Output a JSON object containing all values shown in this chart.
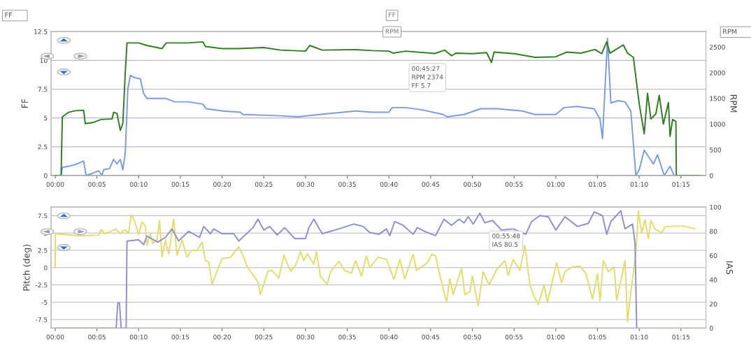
{
  "chart_data": [
    {
      "type": "line",
      "ylabel": "FF",
      "y2label": "RPM",
      "xlim": [
        -0.5,
        78
      ],
      "xticks": [
        {
          "value": 0,
          "label": "00:00"
        },
        {
          "value": 5,
          "label": "00:05"
        },
        {
          "value": 10,
          "label": "00:10"
        },
        {
          "value": 15,
          "label": "00:15"
        },
        {
          "value": 20,
          "label": "00:20"
        },
        {
          "value": 25,
          "label": "00:25"
        },
        {
          "value": 30,
          "label": "00:30"
        },
        {
          "value": 35,
          "label": "00:35"
        },
        {
          "value": 40,
          "label": "00:40"
        },
        {
          "value": 45,
          "label": "00:45"
        },
        {
          "value": 50,
          "label": "00:50"
        },
        {
          "value": 55,
          "label": "00:55"
        },
        {
          "value": 60,
          "label": "01:00"
        },
        {
          "value": 65,
          "label": "01:05"
        },
        {
          "value": 70,
          "label": "01:10"
        },
        {
          "value": 75,
          "label": "01:15"
        }
      ],
      "ylim": [
        0,
        12.5
      ],
      "yticks": [
        0,
        2.5,
        5,
        7.5,
        10,
        12.5
      ],
      "y2lim": [
        0,
        2800
      ],
      "y2ticks": [
        0,
        500,
        1000,
        1500,
        2000,
        2500
      ],
      "grid": "y",
      "annotations": [
        "FF",
        "FF",
        "RPM",
        "RPM",
        "00:45:27\nRPM 2374\nFF 5.7"
      ],
      "series": [
        {
          "color": "#7b9be0",
          "x": [
            0,
            0.7,
            0.85,
            1.6,
            2.4,
            3.4,
            3.7,
            4.5,
            5.2,
            5.6,
            5.8,
            6.5,
            7.0,
            7.4,
            7.8,
            8.1,
            8.4,
            8.7,
            9.0,
            9.5,
            10.2,
            10.6,
            11.0,
            11.9,
            13.2,
            14.3,
            15.9,
            17.7,
            18.1,
            20.1,
            22.2,
            22.5,
            26.5,
            29.1,
            31.7,
            36,
            38,
            40,
            40.4,
            42,
            44,
            46.5,
            47,
            49,
            51,
            53,
            56,
            57.5,
            60,
            61,
            62.5,
            64.6,
            65.3,
            65.6,
            66.2,
            66.6,
            67.5,
            68.3,
            69,
            69.6,
            70,
            70.6,
            71.7,
            72.2,
            73,
            73.7,
            74,
            74.2,
            77.3
          ],
          "values": [
            0,
            0,
            0.7,
            0.8,
            0.95,
            1.25,
            0,
            0.2,
            0.4,
            0,
            0.5,
            0.6,
            1.4,
            1.0,
            1.4,
            0.5,
            2.0,
            7.5,
            8.7,
            8.5,
            8.4,
            7.1,
            6.7,
            6.7,
            6.7,
            6.4,
            6.4,
            6.2,
            5.8,
            5.6,
            5.5,
            5.3,
            5.2,
            5.1,
            5.3,
            5.6,
            5.5,
            5.5,
            5.9,
            5.9,
            5.7,
            5.3,
            5.1,
            5.3,
            5.8,
            5.8,
            5.6,
            5.3,
            5.3,
            5.9,
            6.0,
            5.8,
            4.9,
            3.2,
            11.9,
            6.3,
            6.5,
            6.4,
            5.6,
            0,
            0.5,
            2.2,
            1.0,
            1.8,
            0,
            0.8,
            0.3,
            0,
            0
          ]
        },
        {
          "color": "#2e7d1e",
          "axis": "y2",
          "x": [
            0,
            0.7,
            0.85,
            1.6,
            2.4,
            3.4,
            3.6,
            4.5,
            5.5,
            6.8,
            7.0,
            7.4,
            7.8,
            8.1,
            8.4,
            8.6,
            10,
            11,
            12.8,
            13.3,
            15.9,
            17.7,
            18,
            20,
            22,
            25,
            27,
            30,
            30.5,
            32,
            36,
            38,
            40,
            40.5,
            42,
            45.5,
            46.7,
            47.5,
            48,
            50,
            51.7,
            52.3,
            52.6,
            55,
            57.5,
            60,
            61.3,
            63,
            64.7,
            65.5,
            66.1,
            66.5,
            67.5,
            68.1,
            68.6,
            69.3,
            70,
            70.6,
            71,
            71.4,
            72,
            72.4,
            72.9,
            73.5,
            73.7,
            74,
            74.4,
            74.45,
            77.3
          ],
          "values": [
            0,
            0,
            1140,
            1230,
            1260,
            1270,
            1010,
            1030,
            1090,
            1100,
            1230,
            1210,
            880,
            1010,
            2020,
            2580,
            2580,
            2530,
            2470,
            2580,
            2580,
            2600,
            2510,
            2470,
            2470,
            2490,
            2440,
            2420,
            2530,
            2440,
            2450,
            2430,
            2420,
            2380,
            2420,
            2374,
            2440,
            2330,
            2380,
            2370,
            2390,
            2200,
            2400,
            2370,
            2300,
            2310,
            2400,
            2380,
            2450,
            2370,
            2600,
            2380,
            2480,
            2540,
            2380,
            2300,
            1400,
            810,
            1600,
            1100,
            1200,
            1560,
            1000,
            1420,
            760,
            1090,
            1050,
            0,
            0
          ]
        }
      ]
    },
    {
      "type": "line",
      "ylabel": "Pitch (deg)",
      "y2label": "IAS",
      "xlim": [
        -0.5,
        78
      ],
      "xticks": [
        {
          "value": 0,
          "label": "00:00"
        },
        {
          "value": 5,
          "label": "00:05"
        },
        {
          "value": 10,
          "label": "00:10"
        },
        {
          "value": 15,
          "label": "00:15"
        },
        {
          "value": 20,
          "label": "00:20"
        },
        {
          "value": 25,
          "label": "00:25"
        },
        {
          "value": 30,
          "label": "00:30"
        },
        {
          "value": 35,
          "label": "00:35"
        },
        {
          "value": 40,
          "label": "00:40"
        },
        {
          "value": 45,
          "label": "00:45"
        },
        {
          "value": 50,
          "label": "00:50"
        },
        {
          "value": 55,
          "label": "00:55"
        },
        {
          "value": 60,
          "label": "01:00"
        },
        {
          "value": 65,
          "label": "01:05"
        },
        {
          "value": 70,
          "label": "01:10"
        },
        {
          "value": 75,
          "label": "01:15"
        }
      ],
      "ylim": [
        -8.75,
        8.75
      ],
      "yticks": [
        -7.5,
        -5,
        -2.5,
        0,
        2.5,
        5,
        7.5
      ],
      "y2lim": [
        0,
        100
      ],
      "y2ticks": [
        0,
        20,
        40,
        60,
        80,
        100
      ],
      "grid": "y",
      "annotations": [
        "00:55:48\nIAS 80.5"
      ],
      "series": [
        {
          "color": "#e3dc6a",
          "x": [
            0,
            0.02,
            1,
            3,
            5.2,
            5.5,
            6,
            7.3,
            7.8,
            8.3,
            8.8,
            9.1,
            9.5,
            10,
            10.4,
            10.8,
            11.0,
            11.4,
            11.7,
            12.2,
            12.5,
            12.8,
            13.2,
            13.6,
            14.2,
            14.6,
            15.2,
            15.8,
            16.3,
            17.0,
            17.6,
            18.0,
            18.4,
            18.8,
            19.4,
            20,
            21,
            22,
            22.6,
            23,
            24.3,
            24.6,
            25.5,
            26,
            26.8,
            27.4,
            28.2,
            28.8,
            29.4,
            29.8,
            30.2,
            31,
            31.3,
            31.8,
            32.6,
            33,
            34,
            34.7,
            35.5,
            36,
            36.7,
            37.3,
            37.7,
            38.7,
            39.7,
            40.6,
            41.3,
            41.9,
            42.9,
            43.3,
            44.6,
            45.1,
            45.6,
            46.0,
            46.6,
            46.9,
            47.3,
            47.7,
            48.7,
            49.1,
            49.7,
            50.0,
            50.7,
            51.3,
            52.0,
            52.9,
            53.9,
            54.3,
            54.9,
            55.7,
            56.3,
            56.9,
            57.3,
            57.9,
            58.6,
            59.0,
            60.1,
            60.7,
            61.1,
            62.0,
            62.9,
            63.6,
            64.4,
            65.0,
            65.3,
            65.7,
            66.3,
            67.0,
            67.3,
            67.7,
            68.3,
            68.6,
            69.0,
            69.6,
            69.9,
            70.3,
            70.7,
            71.1,
            71.4,
            71.9,
            72.7,
            73.1,
            74.3,
            75.4,
            76.7
          ],
          "values": [
            0,
            4.9,
            4.8,
            4.6,
            4.7,
            5.5,
            4.9,
            5.6,
            4.9,
            5.5,
            5.0,
            7.6,
            6.8,
            4.8,
            6.6,
            6.0,
            3.2,
            4.9,
            3.5,
            4.0,
            6.8,
            1.6,
            4.0,
            2.0,
            7.0,
            1.8,
            4.0,
            1.5,
            2.5,
            2.5,
            3.7,
            1.0,
            0.8,
            -2.4,
            -0.5,
            1.3,
            1.5,
            3.0,
            1.5,
            0.2,
            -2.1,
            -3.9,
            -0.5,
            -0.4,
            -1.5,
            1.8,
            -0.5,
            0.3,
            2.3,
            1.0,
            2.0,
            0.5,
            2.3,
            -1.3,
            -2.4,
            -0.6,
            0.9,
            -0.4,
            -0.8,
            1.0,
            -1.2,
            1.7,
            0,
            1.5,
            1.2,
            -1.7,
            1.2,
            -1.6,
            1.9,
            -0.4,
            0.7,
            1.9,
            1.7,
            -0.6,
            -3.5,
            -5.0,
            -1.6,
            -3.9,
            -0.1,
            -3.9,
            -3.5,
            -1.2,
            -5.5,
            -0.6,
            -2.5,
            -0.3,
            1.0,
            -1.1,
            1.2,
            -0.4,
            3.2,
            -2.5,
            -3.9,
            -5.3,
            -2.5,
            -5.0,
            0.7,
            -2.2,
            -0.6,
            0.1,
            0.2,
            -0.8,
            -4.5,
            -0.9,
            -4.8,
            1.0,
            -0.6,
            0.1,
            -4.7,
            -2.5,
            1.0,
            -7.8,
            -3.5,
            2.0,
            8.2,
            5.0,
            6.9,
            4.2,
            6.8,
            5.6,
            5.0,
            5.9,
            6.0,
            6.0,
            5.6
          ]
        },
        {
          "color": "#8c8fd0",
          "axis": "y2",
          "x": [
            0,
            7.3,
            7.5,
            7.7,
            7.9,
            8.5,
            8.6,
            10,
            10.6,
            11,
            12.3,
            13.2,
            14,
            14.8,
            16,
            17.3,
            17.8,
            18.6,
            19,
            20,
            21.4,
            22,
            23.7,
            24.3,
            25,
            25.7,
            26.6,
            27.5,
            28.7,
            30,
            30.4,
            31,
            32,
            34,
            35.8,
            36.9,
            37.7,
            38.8,
            39.7,
            40.1,
            40.7,
            41.7,
            42.9,
            43.4,
            44.6,
            45.6,
            46.6,
            47.5,
            48.4,
            49.0,
            49.5,
            50.1,
            50.9,
            51.5,
            52.4,
            53.5,
            54.9,
            56.4,
            57.1,
            58.1,
            59.1,
            60.0,
            61.1,
            62.6,
            63.9,
            64.6,
            65.6,
            66.1,
            66.6,
            67.8,
            68.3,
            69.2,
            69.5,
            69.7
          ],
          "values": [
            0,
            0,
            21,
            21,
            0,
            0,
            72,
            73,
            69,
            76,
            71,
            75,
            82,
            72,
            80,
            75,
            84,
            78,
            82,
            78,
            78,
            72,
            83,
            90,
            81,
            84,
            77,
            83,
            74,
            74,
            83,
            90,
            78,
            82,
            86,
            84,
            79,
            77.5,
            82,
            76.5,
            88,
            85,
            77.5,
            83,
            79,
            76.5,
            90,
            85,
            90,
            87,
            92,
            86,
            95,
            87,
            89,
            81,
            82,
            77.5,
            88,
            93,
            92,
            81,
            92,
            84,
            86.5,
            96,
            93,
            77.5,
            88,
            97,
            82,
            86,
            70,
            0
          ]
        }
      ]
    }
  ]
}
